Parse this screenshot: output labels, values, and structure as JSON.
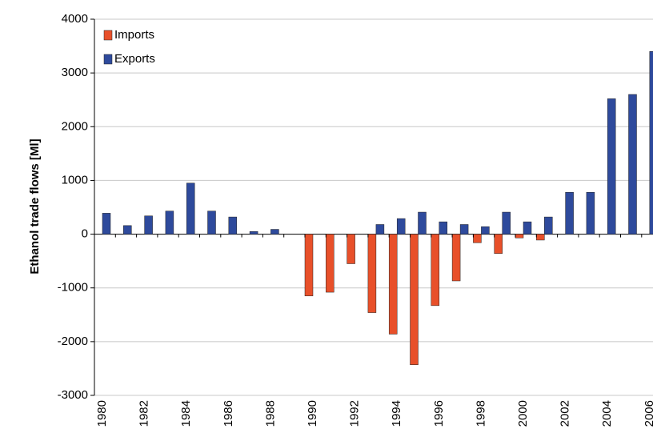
{
  "chart_data": {
    "type": "bar",
    "y_label": "Ethanol trade flows [Ml]",
    "categories": [
      "1980",
      null,
      "1982",
      null,
      "1984",
      null,
      "1986",
      null,
      "1988",
      null,
      "1990",
      null,
      "1992",
      null,
      "1994",
      null,
      "1996",
      null,
      "1998",
      null,
      "2000",
      null,
      "2002",
      null,
      "2004",
      null,
      "2006"
    ],
    "series": [
      {
        "name": "Imports",
        "color": "#e8502a",
        "values": [
          null,
          null,
          null,
          null,
          null,
          null,
          null,
          null,
          null,
          null,
          -1150,
          -1080,
          -550,
          -1460,
          -1860,
          -2430,
          -1330,
          -870,
          -160,
          -360,
          -70,
          -110,
          null,
          null,
          null,
          null,
          null
        ]
      },
      {
        "name": "Exports",
        "color": "#2e4a9c",
        "values": [
          390,
          160,
          340,
          430,
          950,
          430,
          320,
          50,
          90,
          null,
          null,
          null,
          null,
          180,
          290,
          410,
          230,
          180,
          140,
          410,
          230,
          320,
          780,
          780,
          2520,
          2600,
          3400
        ]
      }
    ],
    "ylim": [
      -3000,
      4000
    ],
    "yticks": [
      -3000,
      -2000,
      -1000,
      0,
      1000,
      2000,
      3000,
      4000
    ],
    "grid": true,
    "legend": "top-left"
  }
}
